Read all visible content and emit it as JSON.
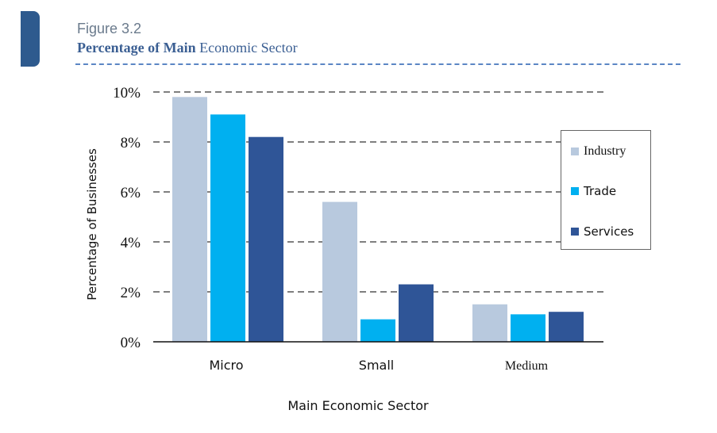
{
  "figure": {
    "label": "Figure 3.2",
    "title_main": "Percentage of Main",
    "title_rest": " Economic Sector"
  },
  "colors": {
    "accent_tab": "#2e5a8e",
    "rule": "#5b86c4"
  },
  "chart_data": {
    "type": "bar",
    "categories": [
      "Micro",
      "Small",
      "Medium"
    ],
    "series": [
      {
        "name": "Industry",
        "values": [
          9.8,
          5.6,
          1.5
        ],
        "color": "#b8c9de"
      },
      {
        "name": "Trade",
        "values": [
          9.1,
          0.9,
          1.1
        ],
        "color": "#00b0f0"
      },
      {
        "name": "Services",
        "values": [
          8.2,
          2.3,
          1.2
        ],
        "color": "#2f5597"
      }
    ],
    "xlabel": "Main Economic Sector",
    "ylabel": "Percentage of Businesses",
    "ylim": [
      0,
      10
    ],
    "yticks": [
      0,
      2,
      4,
      6,
      8,
      10
    ],
    "ytick_labels": [
      "0%",
      "2%",
      "4%",
      "6%",
      "8%",
      "10%"
    ],
    "grid": "horizontal dashed",
    "legend_position": "right"
  }
}
